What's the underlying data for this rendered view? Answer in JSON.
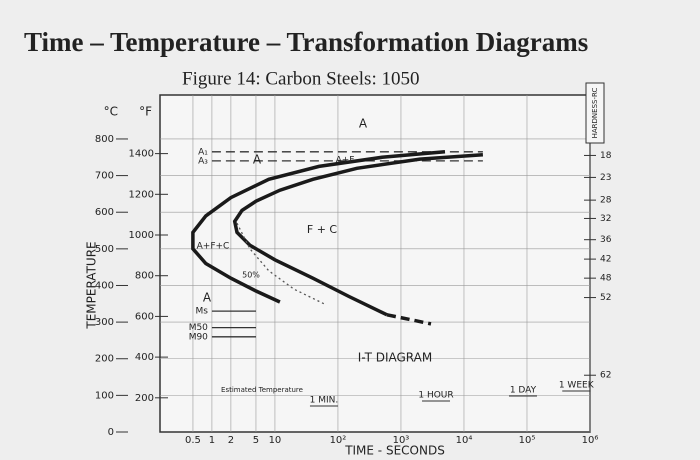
{
  "title": "Time – Temperature – Transformation Diagrams",
  "chart_data": {
    "type": "line",
    "title": "Figure 14: Carbon Steels: 1050",
    "x_label": "TIME - SECONDS",
    "y_label": "TEMPERATURE",
    "y_unit": "°C",
    "y2_unit": "°F",
    "x_log": true,
    "xlim": [
      0.15,
      1000000
    ],
    "xticks": [
      0.5,
      1,
      2,
      5,
      10,
      {
        "value": 100,
        "label": "10²"
      },
      {
        "value": 1000,
        "label": "10³"
      },
      {
        "value": 10000,
        "label": "10⁴"
      },
      {
        "value": 100000,
        "label": "10⁵"
      },
      {
        "value": 1000000,
        "label": "10⁶"
      }
    ],
    "ylim": [
      0,
      920
    ],
    "yticks": [
      0,
      100,
      200,
      300,
      400,
      500,
      600,
      700,
      800
    ],
    "y2lim": [
      32,
      1688
    ],
    "y2ticks": [
      200,
      400,
      600,
      800,
      1000,
      1200,
      1400
    ],
    "grid": true,
    "series": [
      {
        "name": "A₁",
        "color": "#333333",
        "style": "dashed",
        "weight": "thin",
        "x": [
          1,
          20000
        ],
        "values": [
          765,
          765
        ]
      },
      {
        "name": "A₃",
        "color": "#333333",
        "style": "dashed",
        "weight": "thin",
        "x": [
          1,
          20000
        ],
        "values": [
          740,
          740
        ]
      },
      {
        "color": "#1a1a1a",
        "style": "solid",
        "weight": "thick",
        "x": [
          5000,
          500,
          50,
          8,
          2,
          0.8,
          0.5,
          0.5,
          0.8,
          2,
          5,
          12
        ],
        "values": [
          765,
          750,
          725,
          690,
          640,
          590,
          545,
          500,
          460,
          420,
          385,
          355
        ]
      },
      {
        "color": "#1a1a1a",
        "style": "solid",
        "weight": "thick",
        "x": [
          20000,
          2000,
          200,
          40,
          12,
          5,
          3,
          2.3,
          2.5,
          4,
          10,
          40,
          150,
          600
        ],
        "values": [
          757,
          745,
          720,
          690,
          660,
          630,
          605,
          575,
          545,
          510,
          470,
          420,
          370,
          320
        ]
      },
      {
        "color": "#1a1a1a",
        "style": "dashed",
        "weight": "thick",
        "x": [
          600,
          3000
        ],
        "values": [
          320,
          295
        ]
      },
      {
        "color": "#555555",
        "style": "dotted",
        "weight": "thin",
        "x": [
          2.5,
          4,
          8,
          20,
          60
        ],
        "values": [
          570,
          500,
          440,
          390,
          350
        ]
      },
      {
        "name": "Ms",
        "color": "#333333",
        "style": "solid",
        "weight": "thin",
        "x": [
          1,
          5
        ],
        "values": [
          330,
          330
        ]
      },
      {
        "name": "M50",
        "color": "#333333",
        "style": "solid",
        "weight": "thin",
        "x": [
          1,
          5
        ],
        "values": [
          285,
          285
        ]
      },
      {
        "name": "M90",
        "color": "#333333",
        "style": "solid",
        "weight": "thin",
        "x": [
          1,
          5
        ],
        "values": [
          260,
          260
        ]
      }
    ],
    "hardness": {
      "title": "HARDNESS-RC",
      "values": [
        18,
        23,
        28,
        32,
        36,
        42,
        48,
        52,
        62
      ],
      "temps": [
        755,
        695,
        633,
        583,
        525,
        472,
        420,
        367,
        155
      ]
    },
    "time_marks": {
      "labels": [
        "1 MIN.",
        "1 HOUR",
        "1 DAY",
        "1 WEEK"
      ],
      "x": [
        60,
        3600,
        86400,
        604800
      ]
    },
    "annotations": [
      "A",
      "A+F",
      "A",
      "F + C",
      "A+F+C",
      "A",
      "50%",
      "Estimated Temperature",
      "I-T DIAGRAM"
    ]
  }
}
